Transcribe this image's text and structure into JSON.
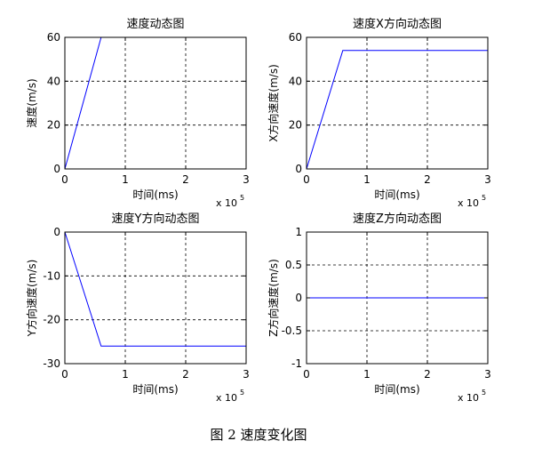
{
  "figure": {
    "caption": "图 2 速度变化图"
  },
  "chart_data": [
    {
      "type": "line",
      "title": "速度动态图",
      "xlabel": "时间(ms)",
      "ylabel": "速度(m/s)",
      "x_multiplier": "x 10",
      "x_multiplier_exp": "5",
      "xlim": [
        0,
        3
      ],
      "ylim": [
        0,
        60
      ],
      "xticks": [
        0,
        1,
        2,
        3
      ],
      "yticks": [
        0,
        20,
        40,
        60
      ],
      "grid": true,
      "line_color": "#0000ff",
      "series": [
        {
          "x": [
            0,
            0.6,
            3
          ],
          "y": [
            0,
            60,
            60
          ]
        }
      ]
    },
    {
      "type": "line",
      "title": "速度X方向动态图",
      "xlabel": "时间(ms)",
      "ylabel": "X方向速度(m/s)",
      "x_multiplier": "x 10",
      "x_multiplier_exp": "5",
      "xlim": [
        0,
        3
      ],
      "ylim": [
        0,
        60
      ],
      "xticks": [
        0,
        1,
        2,
        3
      ],
      "yticks": [
        0,
        20,
        40,
        60
      ],
      "grid": true,
      "line_color": "#0000ff",
      "series": [
        {
          "x": [
            0,
            0.6,
            3
          ],
          "y": [
            0,
            54,
            54
          ]
        }
      ]
    },
    {
      "type": "line",
      "title": "速度Y方向动态图",
      "xlabel": "时间(ms)",
      "ylabel": "Y方向速度(m/s)",
      "x_multiplier": "x 10",
      "x_multiplier_exp": "5",
      "xlim": [
        0,
        3
      ],
      "ylim": [
        -30,
        0
      ],
      "xticks": [
        0,
        1,
        2,
        3
      ],
      "yticks": [
        -30,
        -20,
        -10,
        0
      ],
      "grid": true,
      "line_color": "#0000ff",
      "series": [
        {
          "x": [
            0,
            0.6,
            3
          ],
          "y": [
            0,
            -26,
            -26
          ]
        }
      ]
    },
    {
      "type": "line",
      "title": "速度Z方向动态图",
      "xlabel": "时间(ms)",
      "ylabel": "Z方向速度(m/s)",
      "x_multiplier": "x 10",
      "x_multiplier_exp": "5",
      "xlim": [
        0,
        3
      ],
      "ylim": [
        -1,
        1
      ],
      "xticks": [
        0,
        1,
        2,
        3
      ],
      "yticks": [
        -1,
        -0.5,
        0,
        0.5,
        1
      ],
      "grid": true,
      "line_color": "#0000ff",
      "series": [
        {
          "x": [
            0,
            3
          ],
          "y": [
            0,
            0
          ]
        }
      ]
    }
  ]
}
